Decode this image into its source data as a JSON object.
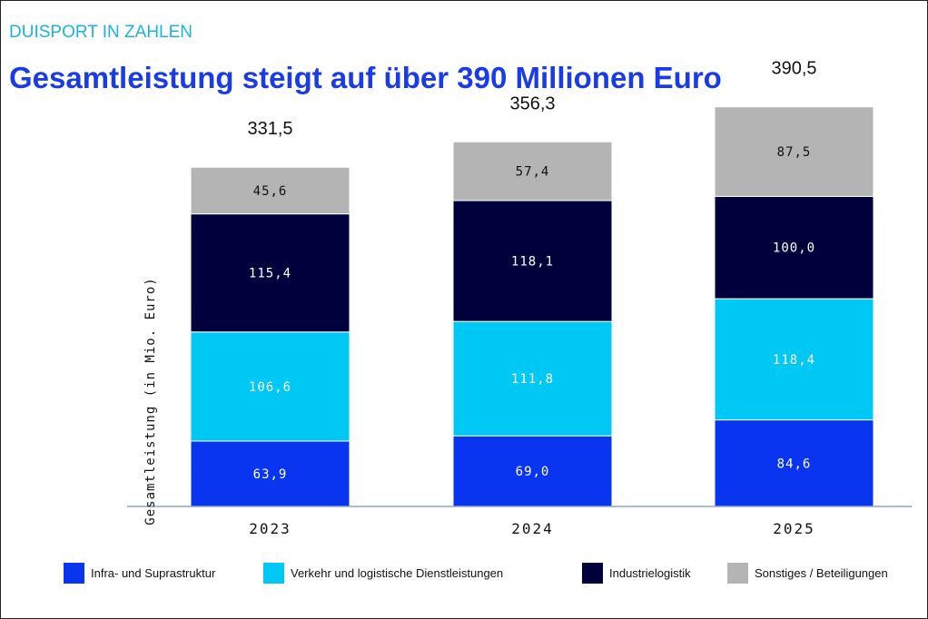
{
  "header": {
    "kicker": "DUISPORT IN ZAHLEN",
    "title": "Gesamtleistung steigt auf über 390 Millionen Euro"
  },
  "colors": {
    "infra": "#0a35f0",
    "verkehr": "#00c8f4",
    "industrie": "#00003c",
    "sonstiges": "#b4b4b4",
    "axis": "#8ea7c9"
  },
  "chart_data": {
    "type": "bar",
    "stacked": true,
    "categories": [
      "2023",
      "2024",
      "2025"
    ],
    "totals": [
      "331,5",
      "356,3",
      "390,5"
    ],
    "ylabel": "Gesamtleistung (in Mio. Euro)",
    "ylim": [
      0,
      400
    ],
    "grid": false,
    "legend_position": "bottom",
    "series": [
      {
        "name": "Infra- und Suprastruktur",
        "color_key": "infra",
        "values": [
          63.9,
          69.0,
          84.6
        ],
        "labels": [
          "63,9",
          "69,0",
          "84,6"
        ]
      },
      {
        "name": "Verkehr und logistische Dienstleistungen",
        "color_key": "verkehr",
        "values": [
          106.6,
          111.8,
          118.4
        ],
        "labels": [
          "106,6",
          "111,8",
          "118,4"
        ]
      },
      {
        "name": "Industrielogistik",
        "color_key": "industrie",
        "values": [
          115.4,
          118.1,
          100.0
        ],
        "labels": [
          "115,4",
          "118,1",
          "100,0"
        ]
      },
      {
        "name": "Sonstiges / Beteiligungen",
        "color_key": "sonstiges",
        "values": [
          45.6,
          57.4,
          87.5
        ],
        "labels": [
          "45,6",
          "57,4",
          "87,5"
        ]
      }
    ]
  }
}
